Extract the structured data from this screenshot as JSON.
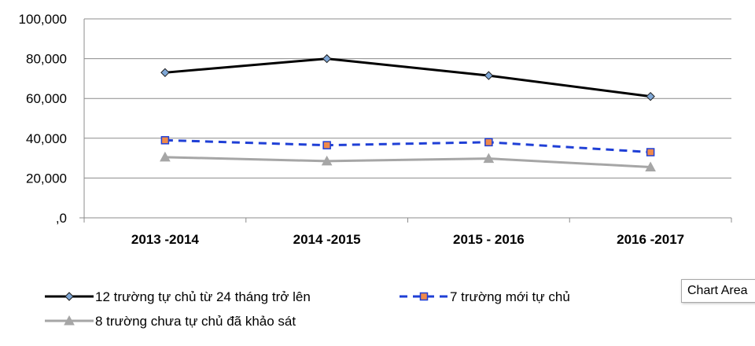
{
  "chart_data": {
    "type": "line",
    "categories": [
      "2013 -2014",
      "2014 -2015",
      "2015 - 2016",
      "2016 -2017"
    ],
    "ylim": [
      0,
      100000
    ],
    "yticks": [
      0,
      20000,
      40000,
      60000,
      80000,
      100000
    ],
    "ytick_labels": [
      ",0",
      "20,000",
      "40,000",
      "60,000",
      "80,000",
      "100,000"
    ],
    "grid": true,
    "legend_position": "bottom",
    "series": [
      {
        "name": "12 trường tự chủ từ 24 tháng trở lên",
        "values": [
          73000,
          80000,
          71500,
          61000
        ],
        "color": "#000000",
        "dash": "solid",
        "marker": "diamond",
        "marker_fill": "#7fa7d6"
      },
      {
        "name": "7 trường mới tự chủ",
        "values": [
          39000,
          36500,
          38000,
          33000
        ],
        "color": "#1f3fd6",
        "dash": "dashed",
        "marker": "square",
        "marker_fill": "#f08a4b"
      },
      {
        "name": "8 trường chưa tự chủ đã khảo sát",
        "values": [
          30500,
          28500,
          29800,
          25500
        ],
        "color": "#a6a6a6",
        "dash": "solid",
        "marker": "triangle",
        "marker_fill": "#a6a6a6"
      }
    ]
  },
  "tooltip": {
    "text": "Chart Area"
  }
}
